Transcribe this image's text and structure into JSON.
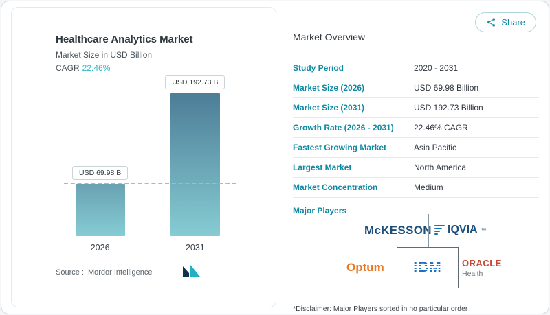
{
  "colors": {
    "accent_teal": "#0f8aa3",
    "cagr_teal": "#33b6c4",
    "mckesson_navy": "#1c4f7c",
    "optum_orange": "#e87722",
    "ibm_blue": "#1f70c1",
    "oracle_red": "#c74634"
  },
  "share": {
    "label": "Share"
  },
  "chart_card": {
    "title": "Healthcare Analytics Market",
    "subtitle": "Market Size in USD Billion",
    "cagr_label": "CAGR",
    "cagr_value": "22.46%",
    "source_label": "Source :",
    "source_value": "Mordor Intelligence"
  },
  "chart_data": {
    "type": "bar",
    "title": "Healthcare Analytics Market",
    "ylabel": "Market Size in USD Billion",
    "categories": [
      "2026",
      "2031"
    ],
    "values": [
      69.98,
      192.73
    ],
    "bar_labels": [
      "USD 69.98 B",
      "USD 192.73 B"
    ],
    "unit": "USD Billion",
    "cagr": "22.46%",
    "reference_line_value": 69.98,
    "ylim": [
      0,
      192.73
    ],
    "grid": false,
    "legend": false
  },
  "overview": {
    "title": "Market Overview",
    "rows": [
      {
        "label": "Study Period",
        "value": "2020 - 2031"
      },
      {
        "label": "Market Size (2026)",
        "value": "USD 69.98 Billion"
      },
      {
        "label": "Market Size (2031)",
        "value": "USD 192.73 Billion"
      },
      {
        "label": "Growth Rate (2026 - 2031)",
        "value": "22.46% CAGR"
      },
      {
        "label": "Fastest Growing Market",
        "value": "Asia Pacific"
      },
      {
        "label": "Largest Market",
        "value": "North America"
      },
      {
        "label": "Market Concentration",
        "value": "Medium"
      }
    ],
    "major_players_label": "Major Players",
    "players": {
      "mckesson": "McKESSON",
      "iqvia": "IQVIA",
      "iqvia_tm": "™",
      "optum": "Optum",
      "ibm": "IBM",
      "oracle": "ORACLE",
      "oracle_sub": "Health"
    },
    "disclaimer": "*Disclaimer: Major Players sorted in no particular order"
  }
}
